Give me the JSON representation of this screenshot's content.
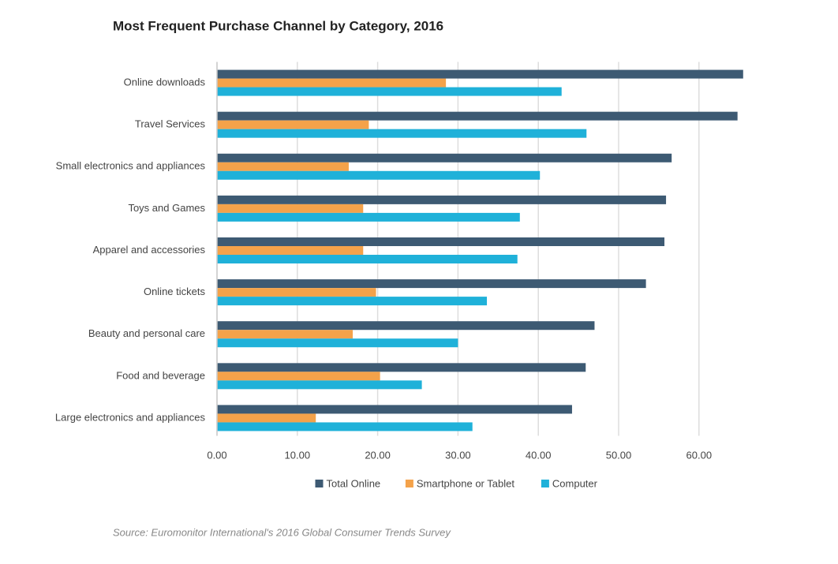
{
  "chart_data": {
    "type": "hbar",
    "title": "Most Frequent Purchase Channel by Category, 2016",
    "source": "Source: Euromonitor International's 2016 Global Consumer Trends Survey",
    "categories": [
      "Online downloads",
      "Travel Services",
      "Small electronics and appliances",
      "Toys and Games",
      "Apparel and accessories",
      "Online tickets",
      "Beauty and personal care",
      "Food and beverage",
      "Large electronics and appliances"
    ],
    "series": [
      {
        "name": "Total Online",
        "color": "#3d5a73",
        "values": [
          65.5,
          64.8,
          56.6,
          55.9,
          55.7,
          53.4,
          47.0,
          45.9,
          44.2
        ]
      },
      {
        "name": "Smartphone or Tablet",
        "color": "#f4a24a",
        "values": [
          28.5,
          18.9,
          16.4,
          18.2,
          18.2,
          19.8,
          16.9,
          20.3,
          12.3
        ]
      },
      {
        "name": "Computer",
        "color": "#1fb1d9",
        "values": [
          42.9,
          46.0,
          40.2,
          37.7,
          37.4,
          33.6,
          30.0,
          25.5,
          31.8
        ]
      }
    ],
    "xlim": [
      0,
      67
    ],
    "xticks": [
      {
        "value": 0,
        "label": "0.00"
      },
      {
        "value": 10,
        "label": "10.00"
      },
      {
        "value": 20,
        "label": "20.00"
      },
      {
        "value": 30,
        "label": "30.00"
      },
      {
        "value": 40,
        "label": "40.00"
      },
      {
        "value": 50,
        "label": "50.00"
      },
      {
        "value": 60,
        "label": "60.00"
      }
    ],
    "grid": true,
    "legend": "bottom"
  }
}
